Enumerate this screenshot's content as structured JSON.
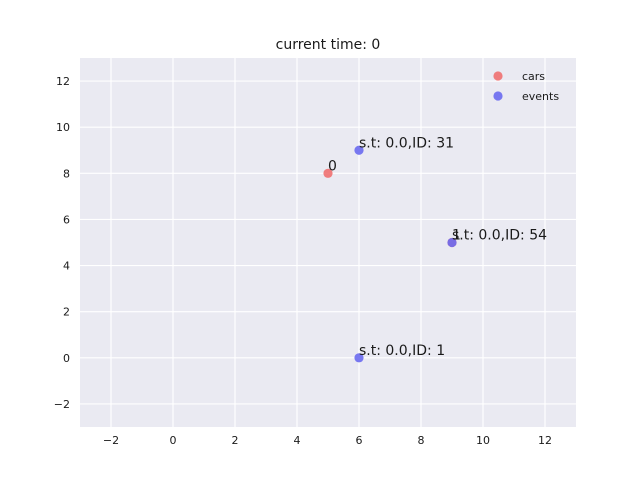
{
  "chart_data": {
    "type": "scatter",
    "title": "current time: 0",
    "xlabel": "",
    "ylabel": "",
    "xlim": [
      -3,
      13
    ],
    "ylim": [
      -3,
      13
    ],
    "xticks": [
      -2,
      0,
      2,
      4,
      6,
      8,
      10,
      12
    ],
    "yticks": [
      -2,
      0,
      2,
      4,
      6,
      8,
      10,
      12
    ],
    "xtick_labels": [
      "−2",
      "0",
      "2",
      "4",
      "6",
      "8",
      "10",
      "12"
    ],
    "ytick_labels": [
      "−2",
      "0",
      "2",
      "4",
      "6",
      "8",
      "10",
      "12"
    ],
    "grid": true,
    "legend_position": "top-right",
    "series": [
      {
        "name": "cars",
        "color": "#f07070",
        "points": [
          {
            "x": 5,
            "y": 8,
            "label": "0"
          },
          {
            "x": 9,
            "y": 5,
            "label": "1"
          }
        ]
      },
      {
        "name": "events",
        "color": "#6a6af0",
        "points": [
          {
            "x": 6,
            "y": 9,
            "label": "s.t: 0.0,ID: 31"
          },
          {
            "x": 9,
            "y": 5,
            "label": "s.t: 0.0,ID: 54"
          },
          {
            "x": 6,
            "y": 0,
            "label": "s.t: 0.0,ID: 1"
          }
        ]
      }
    ]
  },
  "colors": {
    "axes_background": "#eaeaf2",
    "grid": "#ffffff"
  }
}
